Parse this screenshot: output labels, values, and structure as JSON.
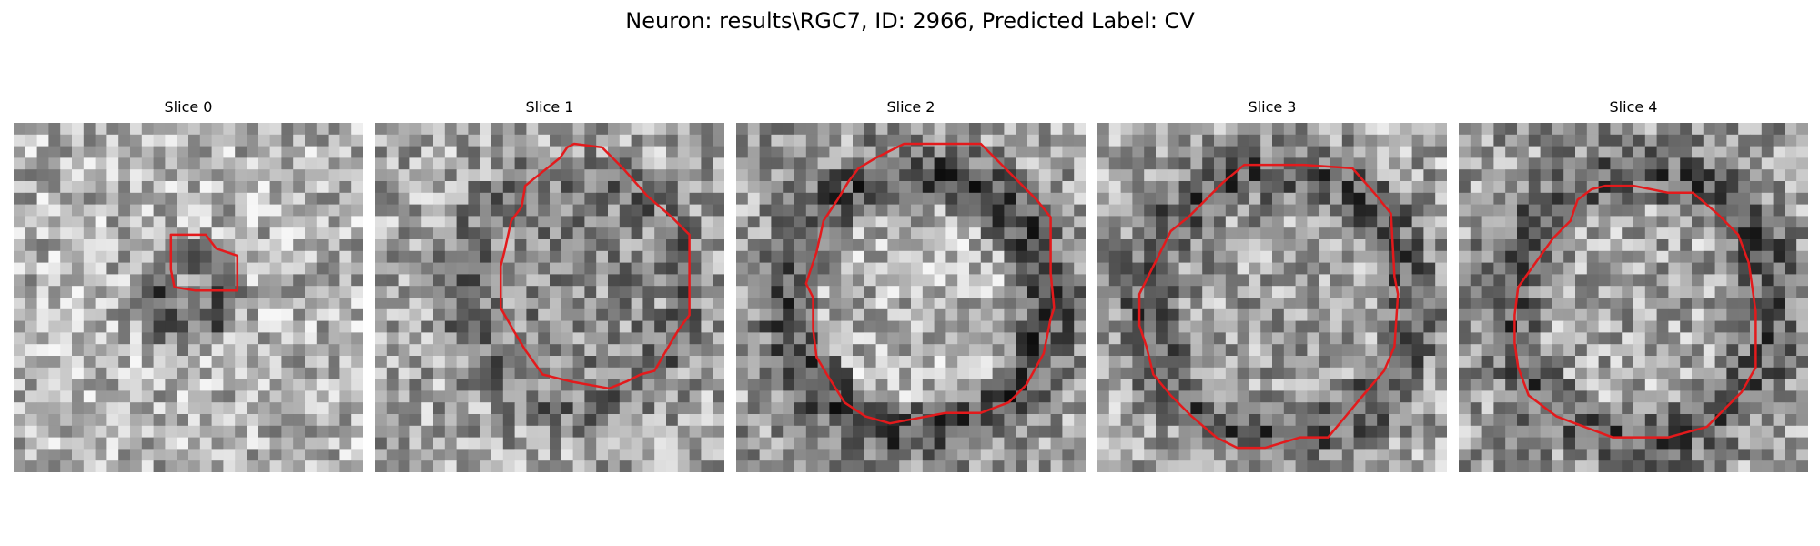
{
  "figure": {
    "title": "Neuron: results\\RGC7, ID: 2966, Predicted Label: CV"
  },
  "panels": [
    {
      "title": "Slice 0",
      "contour_color": "#e31a1c"
    },
    {
      "title": "Slice 1",
      "contour_color": "#e31a1c"
    },
    {
      "title": "Slice 2",
      "contour_color": "#e31a1c"
    },
    {
      "title": "Slice 3",
      "contour_color": "#e31a1c"
    },
    {
      "title": "Slice 4",
      "contour_color": "#e31a1c"
    }
  ]
}
